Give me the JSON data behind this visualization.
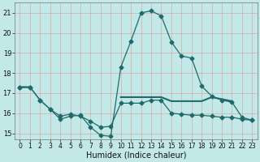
{
  "xlabel": "Humidex (Indice chaleur)",
  "ylabel": "",
  "xlim": [
    -0.5,
    23.5
  ],
  "ylim": [
    14.7,
    21.5
  ],
  "yticks": [
    15,
    16,
    17,
    18,
    19,
    20,
    21
  ],
  "xticks": [
    0,
    1,
    2,
    3,
    4,
    5,
    6,
    7,
    8,
    9,
    10,
    11,
    12,
    13,
    14,
    15,
    16,
    17,
    18,
    19,
    20,
    21,
    22,
    23
  ],
  "bg_color": "#c2e8e8",
  "grid_color": "#d8a8a8",
  "line_color": "#1e6b6b",
  "line1_x": [
    0,
    1,
    2,
    3,
    4,
    5,
    6,
    7,
    8,
    9,
    10,
    11,
    12,
    13,
    14,
    15,
    16,
    17,
    18,
    19,
    20,
    21,
    22,
    23
  ],
  "line1_y": [
    17.3,
    17.3,
    null,
    null,
    null,
    null,
    null,
    null,
    null,
    null,
    16.8,
    16.8,
    16.8,
    16.8,
    16.8,
    16.6,
    16.6,
    16.6,
    16.6,
    16.8,
    16.7,
    16.6,
    null,
    null
  ],
  "line2_x": [
    0,
    1,
    2,
    3,
    4,
    5,
    6,
    7,
    8,
    9,
    10,
    11,
    12,
    13,
    14,
    15,
    16,
    17,
    18,
    19,
    20,
    21,
    22,
    23
  ],
  "line2_y": [
    17.3,
    17.3,
    16.65,
    16.2,
    15.85,
    15.95,
    15.85,
    15.6,
    15.3,
    15.35,
    16.5,
    16.5,
    16.5,
    16.65,
    16.65,
    16.0,
    15.95,
    15.9,
    15.9,
    15.85,
    15.8,
    15.8,
    15.7,
    15.65
  ],
  "line3_x": [
    0,
    1,
    2,
    3,
    4,
    5,
    6,
    7,
    8,
    9,
    10,
    11,
    12,
    13,
    14,
    15,
    16,
    17,
    18,
    19,
    20,
    21,
    22,
    23
  ],
  "line3_y": [
    17.3,
    17.3,
    16.65,
    16.2,
    15.7,
    15.85,
    15.9,
    15.3,
    14.9,
    14.85,
    18.3,
    19.6,
    21.0,
    21.1,
    20.85,
    19.55,
    18.85,
    18.75,
    17.35,
    16.85,
    16.65,
    16.55,
    15.8,
    15.65
  ]
}
